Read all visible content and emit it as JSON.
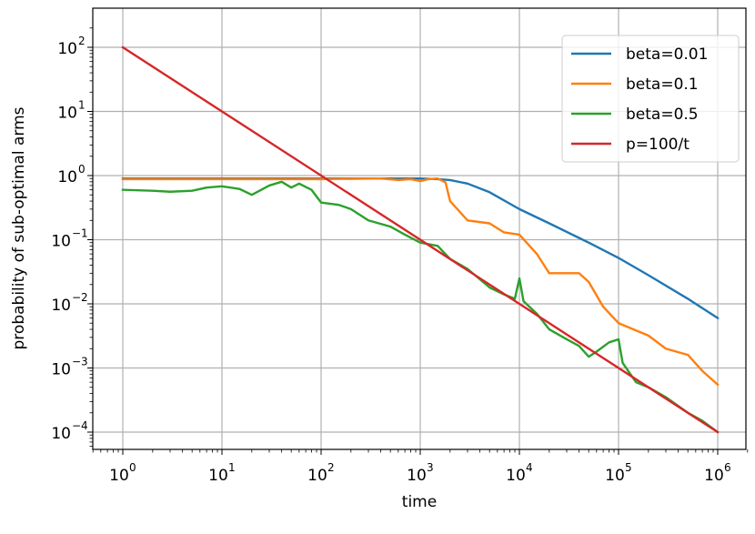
{
  "chart_data": {
    "type": "line",
    "title": "",
    "xlabel": "time",
    "ylabel": "probability of sub-optimal arms",
    "xscale": "log",
    "yscale": "log",
    "xlim": [
      0.5,
      2000000
    ],
    "ylim": [
      6e-05,
      200
    ],
    "xticks": [
      1,
      10,
      100,
      1000,
      10000,
      100000,
      1000000
    ],
    "yticks": [
      0.0001,
      0.001,
      0.01,
      0.1,
      1,
      10,
      100
    ],
    "xtick_labels": [
      {
        "base": "10",
        "exp": "0"
      },
      {
        "base": "10",
        "exp": "1"
      },
      {
        "base": "10",
        "exp": "2"
      },
      {
        "base": "10",
        "exp": "3"
      },
      {
        "base": "10",
        "exp": "4"
      },
      {
        "base": "10",
        "exp": "5"
      },
      {
        "base": "10",
        "exp": "6"
      }
    ],
    "ytick_labels": [
      {
        "base": "10",
        "exp": "−4"
      },
      {
        "base": "10",
        "exp": "−3"
      },
      {
        "base": "10",
        "exp": "−2"
      },
      {
        "base": "10",
        "exp": "−1"
      },
      {
        "base": "10",
        "exp": "0"
      },
      {
        "base": "10",
        "exp": "1"
      },
      {
        "base": "10",
        "exp": "2"
      }
    ],
    "grid": true,
    "legend_position": "top-right",
    "series": [
      {
        "name": "beta=0.01",
        "color": "#1f77b4",
        "points": [
          [
            1,
            0.9
          ],
          [
            10,
            0.9
          ],
          [
            100,
            0.9
          ],
          [
            1000,
            0.9
          ],
          [
            1500,
            0.88
          ],
          [
            2000,
            0.85
          ],
          [
            3000,
            0.75
          ],
          [
            5000,
            0.55
          ],
          [
            10000,
            0.3
          ],
          [
            20000,
            0.18
          ],
          [
            50000,
            0.09
          ],
          [
            100000,
            0.052
          ],
          [
            200000,
            0.028
          ],
          [
            500000,
            0.012
          ],
          [
            1000000,
            0.006
          ]
        ]
      },
      {
        "name": "beta=0.1",
        "color": "#ff7f0e",
        "points": [
          [
            1,
            0.88
          ],
          [
            10,
            0.88
          ],
          [
            100,
            0.88
          ],
          [
            400,
            0.9
          ],
          [
            600,
            0.85
          ],
          [
            800,
            0.88
          ],
          [
            1000,
            0.82
          ],
          [
            1200,
            0.88
          ],
          [
            1500,
            0.9
          ],
          [
            1800,
            0.78
          ],
          [
            2000,
            0.4
          ],
          [
            3000,
            0.2
          ],
          [
            5000,
            0.18
          ],
          [
            7000,
            0.13
          ],
          [
            10000,
            0.12
          ],
          [
            15000,
            0.06
          ],
          [
            20000,
            0.03
          ],
          [
            30000,
            0.03
          ],
          [
            40000,
            0.03
          ],
          [
            50000,
            0.022
          ],
          [
            70000,
            0.009
          ],
          [
            100000,
            0.005
          ],
          [
            200000,
            0.0032
          ],
          [
            300000,
            0.002
          ],
          [
            500000,
            0.0016
          ],
          [
            700000,
            0.0009
          ],
          [
            1000000,
            0.00055
          ]
        ]
      },
      {
        "name": "beta=0.5",
        "color": "#2ca02c",
        "points": [
          [
            1,
            0.6
          ],
          [
            2,
            0.58
          ],
          [
            3,
            0.56
          ],
          [
            5,
            0.58
          ],
          [
            7,
            0.65
          ],
          [
            10,
            0.68
          ],
          [
            15,
            0.62
          ],
          [
            20,
            0.5
          ],
          [
            30,
            0.7
          ],
          [
            40,
            0.8
          ],
          [
            50,
            0.65
          ],
          [
            60,
            0.75
          ],
          [
            80,
            0.6
          ],
          [
            100,
            0.38
          ],
          [
            150,
            0.35
          ],
          [
            200,
            0.3
          ],
          [
            300,
            0.2
          ],
          [
            500,
            0.16
          ],
          [
            700,
            0.12
          ],
          [
            1000,
            0.09
          ],
          [
            1500,
            0.08
          ],
          [
            2000,
            0.05
          ],
          [
            3000,
            0.035
          ],
          [
            5000,
            0.018
          ],
          [
            7000,
            0.014
          ],
          [
            9000,
            0.012
          ],
          [
            10000,
            0.025
          ],
          [
            11000,
            0.011
          ],
          [
            15000,
            0.007
          ],
          [
            20000,
            0.004
          ],
          [
            30000,
            0.0028
          ],
          [
            40000,
            0.0022
          ],
          [
            50000,
            0.0015
          ],
          [
            60000,
            0.0018
          ],
          [
            80000,
            0.0025
          ],
          [
            100000,
            0.0028
          ],
          [
            110000,
            0.0012
          ],
          [
            150000,
            0.0006
          ],
          [
            200000,
            0.0005
          ],
          [
            300000,
            0.00035
          ],
          [
            500000,
            0.0002
          ],
          [
            700000,
            0.00015
          ],
          [
            1000000,
            0.0001
          ]
        ]
      },
      {
        "name": "p=100/t",
        "color": "#d62728",
        "points": [
          [
            1,
            100
          ],
          [
            1000000,
            0.0001
          ]
        ]
      }
    ]
  }
}
